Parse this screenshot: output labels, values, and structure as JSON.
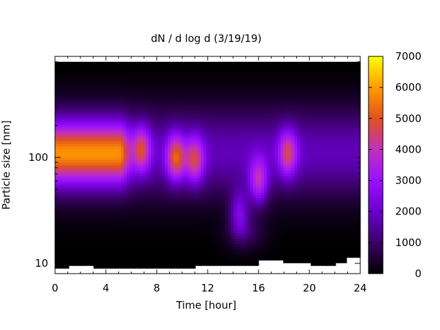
{
  "chart_data": {
    "type": "heatmap",
    "title": "dN / d log d (3/19/19)",
    "xlabel": "Time [hour]",
    "ylabel": "Particle size [nm]",
    "xlim": [
      0,
      24
    ],
    "ylim": [
      8,
      900
    ],
    "yscale": "log",
    "x_ticks": [
      0,
      4,
      8,
      12,
      16,
      20,
      24
    ],
    "y_ticks": [
      10,
      100
    ],
    "colorbar": {
      "min": 0,
      "max": 7000,
      "ticks": [
        0,
        1000,
        2000,
        3000,
        4000,
        5000,
        6000,
        7000
      ],
      "palette": [
        "#000000",
        "#3a0066",
        "#6a00cc",
        "#9a10ff",
        "#c030c0",
        "#e05020",
        "#ff9a00",
        "#ffff00"
      ]
    },
    "blobs": [
      {
        "t_start": 0.0,
        "t_end": 5.0,
        "d_center_nm": 110,
        "peak": 5300
      },
      {
        "t_center": 6.8,
        "d_center_nm": 120,
        "peak": 4300
      },
      {
        "t_center": 9.5,
        "d_center_nm": 100,
        "peak": 4700
      },
      {
        "t_center": 11.0,
        "d_center_nm": 95,
        "peak": 4200
      },
      {
        "t_center": 14.5,
        "d_center_nm": 30,
        "peak": 3200
      },
      {
        "t_center": 16.0,
        "d_center_nm": 60,
        "peak": 4000
      },
      {
        "t_center": 18.3,
        "d_center_nm": 110,
        "peak": 4100
      }
    ],
    "lower_cutoff_nm": [
      [
        0,
        8.8
      ],
      [
        1,
        9.6
      ],
      [
        2,
        9.3
      ],
      [
        3,
        9.0
      ],
      [
        5,
        9.0
      ],
      [
        8,
        9.0
      ],
      [
        11,
        9.3
      ],
      [
        13,
        9.3
      ],
      [
        14.5,
        9.8
      ],
      [
        16,
        10.5
      ],
      [
        18,
        10.2
      ],
      [
        20,
        9.5
      ],
      [
        22,
        10.2
      ],
      [
        23,
        11.5
      ],
      [
        24,
        11.5
      ]
    ],
    "grid": false,
    "legend": "colorbar-right"
  }
}
